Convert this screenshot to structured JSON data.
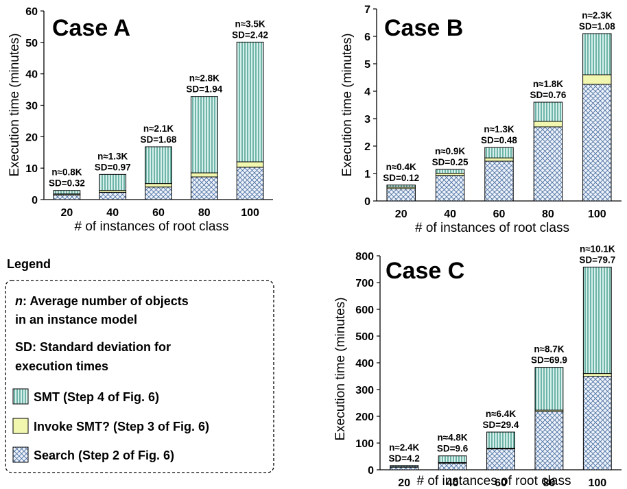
{
  "legend": {
    "title": "Legend",
    "n_symbol": "n",
    "n_desc_line1": ": Average number of objects",
    "n_desc_line2": "in an instance model",
    "sd_desc_line1": "SD: Standard deviation for",
    "sd_desc_line2": "execution times",
    "items": [
      {
        "label": "SMT (Step 4 of Fig. 6)",
        "pattern": "vlines",
        "color": "#d7f0ec",
        "stroke": "#2a8c7c"
      },
      {
        "label": "Invoke SMT? (Step 3 of Fig. 6)",
        "pattern": "solid",
        "color": "#f2f7b0",
        "stroke": "#7a8a30"
      },
      {
        "label": "Search (Step 2 of Fig. 6)",
        "pattern": "crosshatch",
        "color": "#eef3fb",
        "stroke": "#4a6fa0"
      }
    ]
  },
  "chart_data": [
    {
      "type": "bar",
      "stacked": true,
      "title": "Case A",
      "xlabel": "# of instances of root class",
      "ylabel": "Execution time (minutes)",
      "ylim": [
        0,
        60
      ],
      "yticks": [
        0,
        10,
        20,
        30,
        40,
        50,
        60
      ],
      "categories": [
        "20",
        "40",
        "60",
        "80",
        "100"
      ],
      "series": [
        {
          "name": "Search (Step 2 of Fig. 6)",
          "values": [
            1.5,
            2.3,
            4.0,
            7.2,
            10.3
          ]
        },
        {
          "name": "Invoke SMT? (Step 3 of Fig. 6)",
          "values": [
            0.3,
            0.6,
            1.1,
            1.3,
            1.7
          ]
        },
        {
          "name": "SMT (Step 4 of Fig. 6)",
          "values": [
            1.1,
            5.1,
            11.7,
            24.3,
            38.1
          ]
        }
      ],
      "annotations": [
        {
          "n": "n≈0.8K",
          "sd": "SD=0.32"
        },
        {
          "n": "n≈1.3K",
          "sd": "SD=0.97"
        },
        {
          "n": "n≈2.1K",
          "sd": "SD=1.68"
        },
        {
          "n": "n≈2.8K",
          "sd": "SD=1.94"
        },
        {
          "n": "n≈3.5K",
          "sd": "SD=2.42"
        }
      ]
    },
    {
      "type": "bar",
      "stacked": true,
      "title": "Case B",
      "xlabel": "# of instances of root class",
      "ylabel": "Execution time (minutes)",
      "ylim": [
        0,
        7
      ],
      "yticks": [
        0,
        1,
        2,
        3,
        4,
        5,
        6,
        7
      ],
      "categories": [
        "20",
        "40",
        "60",
        "80",
        "100"
      ],
      "series": [
        {
          "name": "Search (Step 2 of Fig. 6)",
          "values": [
            0.45,
            0.93,
            1.45,
            2.7,
            4.25
          ]
        },
        {
          "name": "Invoke SMT? (Step 3 of Fig. 6)",
          "values": [
            0.05,
            0.08,
            0.12,
            0.2,
            0.35
          ]
        },
        {
          "name": "SMT (Step 4 of Fig. 6)",
          "values": [
            0.08,
            0.14,
            0.38,
            0.7,
            1.5
          ]
        }
      ],
      "annotations": [
        {
          "n": "n≈0.4K",
          "sd": "SD=0.12"
        },
        {
          "n": "n≈0.9K",
          "sd": "SD=0.25"
        },
        {
          "n": "n≈1.3K",
          "sd": "SD=0.48"
        },
        {
          "n": "n≈1.8K",
          "sd": "SD=0.76"
        },
        {
          "n": "n≈2.3K",
          "sd": "SD=1.08"
        }
      ]
    },
    {
      "type": "bar",
      "stacked": true,
      "title": "Case C",
      "xlabel": "# of instances of root class",
      "ylabel": "Execution time (minutes)",
      "ylim": [
        0,
        800
      ],
      "yticks": [
        0,
        100,
        200,
        300,
        400,
        500,
        600,
        700,
        800
      ],
      "categories": [
        "20",
        "40",
        "60",
        "80",
        "100"
      ],
      "series": [
        {
          "name": "Search (Step 2 of Fig. 6)",
          "values": [
            10,
            25,
            78,
            218,
            350
          ]
        },
        {
          "name": "Invoke SMT? (Step 3 of Fig. 6)",
          "values": [
            1,
            2,
            3,
            5,
            10
          ]
        },
        {
          "name": "SMT (Step 4 of Fig. 6)",
          "values": [
            5,
            25,
            60,
            160,
            398
          ]
        }
      ],
      "annotations": [
        {
          "n": "n≈2.4K",
          "sd": "SD=4.2"
        },
        {
          "n": "n≈4.8K",
          "sd": "SD=9.6"
        },
        {
          "n": "n≈6.4K",
          "sd": "SD=29.4"
        },
        {
          "n": "n≈8.7K",
          "sd": "SD=69.9"
        },
        {
          "n": "n≈10.1K",
          "sd": "SD=79.7"
        }
      ]
    }
  ]
}
